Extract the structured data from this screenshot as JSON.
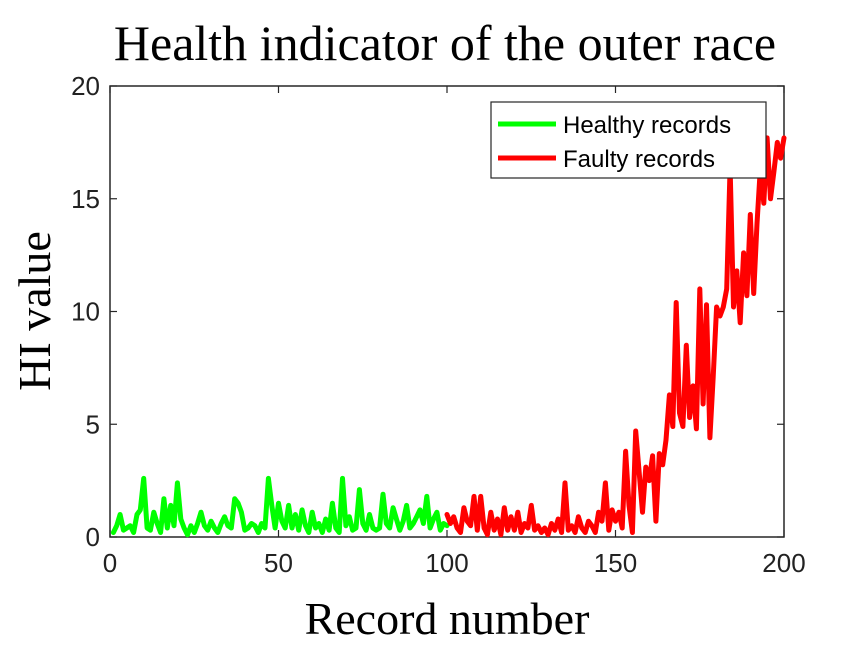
{
  "chart_data": {
    "type": "line",
    "title": "Health indicator of the outer race",
    "xlabel": "Record number",
    "ylabel": "HI value",
    "xlim": [
      0,
      200
    ],
    "ylim": [
      0,
      20
    ],
    "xticks": [
      0,
      50,
      100,
      150,
      200
    ],
    "yticks": [
      0,
      5,
      10,
      15,
      20
    ],
    "grid": false,
    "legend_position": "top-right",
    "series": [
      {
        "name": "Healthy records",
        "color": "#00ff00",
        "x": [
          1,
          2,
          3,
          4,
          5,
          6,
          7,
          8,
          9,
          10,
          11,
          12,
          13,
          14,
          15,
          16,
          17,
          18,
          19,
          20,
          21,
          22,
          23,
          24,
          25,
          26,
          27,
          28,
          29,
          30,
          31,
          32,
          33,
          34,
          35,
          36,
          37,
          38,
          39,
          40,
          41,
          42,
          43,
          44,
          45,
          46,
          47,
          48,
          49,
          50,
          51,
          52,
          53,
          54,
          55,
          56,
          57,
          58,
          59,
          60,
          61,
          62,
          63,
          64,
          65,
          66,
          67,
          68,
          69,
          70,
          71,
          72,
          73,
          74,
          75,
          76,
          77,
          78,
          79,
          80,
          81,
          82,
          83,
          84,
          85,
          86,
          87,
          88,
          89,
          90,
          91,
          92,
          93,
          94,
          95,
          96,
          97,
          98,
          99,
          100
        ],
        "values": [
          0.2,
          0.5,
          1.0,
          0.3,
          0.4,
          0.5,
          0.2,
          1.0,
          1.2,
          2.6,
          0.4,
          0.3,
          1.1,
          0.6,
          0.2,
          1.7,
          0.4,
          1.4,
          0.5,
          2.4,
          0.8,
          0.4,
          0.1,
          0.5,
          0.2,
          0.6,
          1.1,
          0.5,
          0.3,
          0.7,
          0.4,
          0.2,
          0.6,
          0.9,
          0.5,
          0.4,
          1.7,
          1.5,
          1.1,
          0.3,
          0.4,
          0.6,
          0.5,
          0.2,
          0.6,
          0.4,
          2.6,
          1.4,
          0.4,
          1.5,
          0.7,
          0.4,
          1.4,
          0.4,
          1.0,
          0.3,
          1.2,
          0.5,
          0.2,
          1.1,
          0.4,
          0.6,
          0.2,
          0.8,
          0.3,
          1.5,
          0.4,
          0.2,
          2.6,
          0.5,
          0.9,
          0.3,
          0.4,
          2.1,
          0.6,
          0.3,
          1.0,
          0.4,
          0.3,
          0.4,
          1.9,
          0.6,
          0.4,
          1.3,
          0.8,
          0.3,
          0.7,
          1.4,
          0.4,
          0.6,
          0.9,
          1.2,
          0.6,
          1.8,
          0.4,
          0.8,
          1.1,
          0.3,
          0.6,
          0.5
        ]
      },
      {
        "name": "Faulty records",
        "color": "#ff0000",
        "x": [
          100,
          101,
          102,
          103,
          104,
          105,
          106,
          107,
          108,
          109,
          110,
          111,
          112,
          113,
          114,
          115,
          116,
          117,
          118,
          119,
          120,
          121,
          122,
          123,
          124,
          125,
          126,
          127,
          128,
          129,
          130,
          131,
          132,
          133,
          134,
          135,
          136,
          137,
          138,
          139,
          140,
          141,
          142,
          143,
          144,
          145,
          146,
          147,
          148,
          149,
          150,
          151,
          152,
          153,
          154,
          155,
          156,
          157,
          158,
          159,
          160,
          161,
          162,
          163,
          164,
          165,
          166,
          167,
          168,
          169,
          170,
          171,
          172,
          173,
          174,
          175,
          176,
          177,
          178,
          179,
          180,
          181,
          182,
          183,
          184,
          185,
          186,
          187,
          188,
          189,
          190,
          191,
          192,
          193,
          194,
          195,
          196,
          197,
          198,
          199,
          200
        ],
        "values": [
          1.0,
          0.6,
          0.9,
          0.4,
          0.2,
          1.3,
          0.7,
          0.5,
          1.8,
          0.3,
          1.8,
          0.4,
          0.1,
          1.1,
          0.3,
          0.8,
          0.1,
          1.3,
          0.3,
          0.9,
          0.3,
          1.1,
          0.2,
          0.6,
          0.4,
          1.4,
          0.3,
          0.5,
          0.2,
          0.4,
          0.1,
          0.6,
          0.3,
          0.8,
          0.2,
          2.4,
          0.3,
          0.5,
          0.2,
          0.9,
          0.4,
          0.2,
          0.7,
          0.5,
          0.2,
          1.1,
          0.7,
          2.4,
          0.3,
          1.2,
          0.7,
          1.1,
          0.4,
          3.8,
          1.4,
          0.2,
          4.7,
          2.9,
          1.1,
          3.1,
          2.5,
          3.6,
          0.7,
          3.7,
          3.2,
          4.3,
          6.3,
          4.9,
          10.4,
          5.5,
          4.9,
          8.5,
          5.3,
          6.7,
          4.8,
          11.0,
          5.9,
          10.3,
          4.4,
          7.1,
          10.2,
          9.8,
          10.2,
          11.0,
          16.4,
          10.2,
          11.8,
          9.5,
          12.6,
          10.7,
          14.3,
          10.8,
          13.9,
          16.4,
          14.8,
          17.7,
          15.0,
          16.2,
          17.5,
          16.8,
          17.7
        ]
      }
    ]
  }
}
